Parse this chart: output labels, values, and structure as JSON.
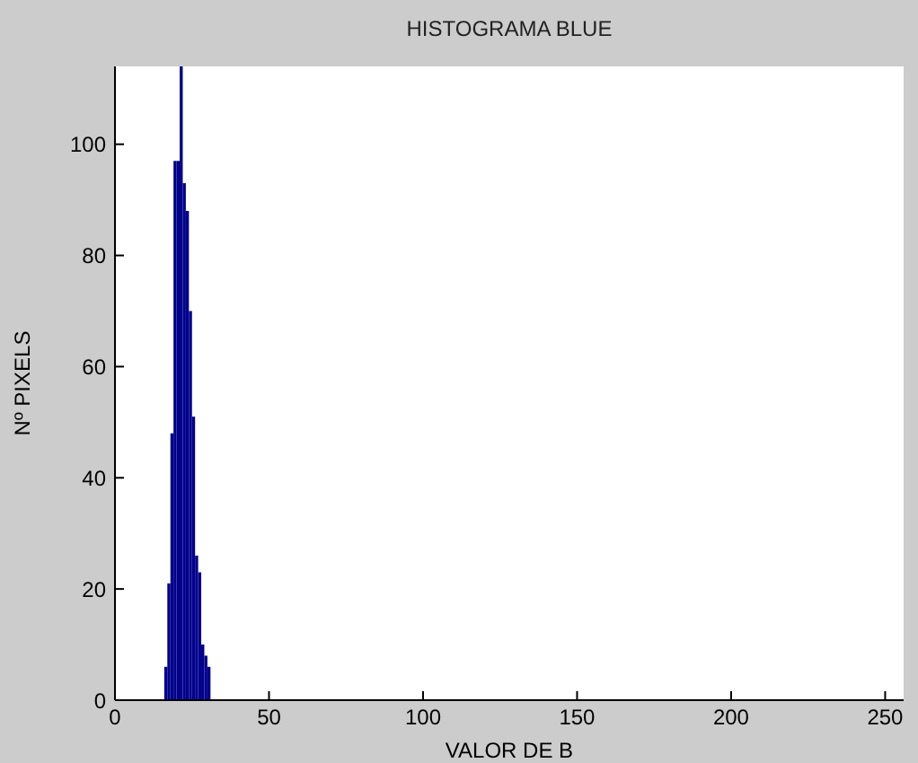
{
  "chart_data": {
    "type": "histogram",
    "title": "HISTOGRAMA BLUE",
    "xlabel": "VALOR DE B",
    "ylabel": "Nº PIXELS",
    "bins": [
      16,
      17,
      18,
      19,
      20,
      21,
      22,
      23,
      24,
      25,
      26,
      27,
      28,
      29,
      30,
      31
    ],
    "values": [
      6,
      21,
      48,
      97,
      97,
      114,
      93,
      88,
      70,
      51,
      26,
      23,
      10,
      8,
      6
    ],
    "color": "#00008b",
    "xlim": [
      0,
      256
    ],
    "ylim": [
      0,
      114
    ],
    "xticks": [
      0,
      50,
      100,
      150,
      200,
      250
    ],
    "yticks": [
      0,
      20,
      40,
      60,
      80,
      100
    ]
  }
}
